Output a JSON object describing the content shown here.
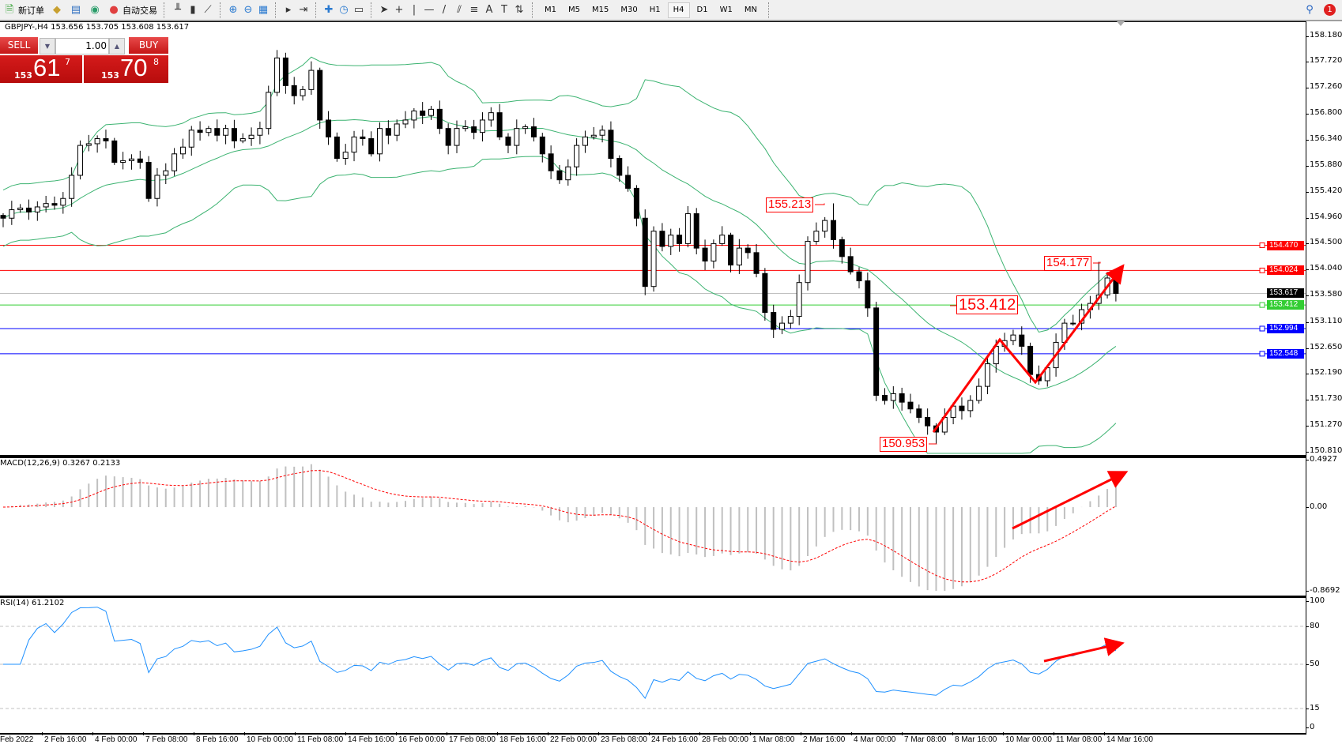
{
  "toolbar": {
    "items": [
      {
        "name": "new-order",
        "label": "新订单",
        "icon": "new-order-icon"
      },
      {
        "name": "market-watch",
        "label": "",
        "icon": "gold-icon"
      },
      {
        "name": "data-window",
        "label": "",
        "icon": "printer-icon"
      },
      {
        "name": "signals",
        "label": "",
        "icon": "signal-icon"
      },
      {
        "name": "auto-trading",
        "label": "自动交易",
        "icon": "auto-trading-icon"
      }
    ],
    "tools": [
      "bar-chart-icon",
      "candlestick-icon",
      "line-chart-icon",
      "zoom-in-icon",
      "zoom-out-icon",
      "tile-windows-icon",
      "autoscroll-icon",
      "chart-shift-icon",
      "indicators-icon",
      "periods-icon",
      "templates-icon",
      "cursor-icon",
      "crosshair-icon",
      "vertical-line-icon",
      "horizontal-line-icon",
      "trendline-icon",
      "equidistant-channel-icon",
      "fibonacci-icon",
      "text-icon",
      "text-label-icon",
      "arrows-icon"
    ],
    "timeframes": [
      "M1",
      "M5",
      "M15",
      "M30",
      "H1",
      "H4",
      "D1",
      "W1",
      "MN"
    ],
    "active_timeframe": "H4",
    "notification_count": "1"
  },
  "chart": {
    "title": "GBPJPY-,H4 153.656 153.705 153.608 153.617",
    "trade_panel": {
      "sell_label": "SELL",
      "buy_label": "BUY",
      "lot": "1.00",
      "sell_price": {
        "prefix": "153",
        "big": "61",
        "sup": "7"
      },
      "buy_price": {
        "prefix": "153",
        "big": "70",
        "sup": "8"
      }
    },
    "price_axis": [
      "158.180",
      "157.720",
      "157.260",
      "156.800",
      "156.340",
      "155.880",
      "155.420",
      "154.960",
      "154.500",
      "154.040",
      "153.580",
      "153.110",
      "152.650",
      "152.190",
      "151.730",
      "151.270",
      "150.810"
    ],
    "hlines": [
      {
        "price": "154.470",
        "color": "#ff0000"
      },
      {
        "price": "154.024",
        "color": "#ff0000"
      },
      {
        "price": "153.617",
        "color": "#000000",
        "line": "#c0c0c0"
      },
      {
        "price": "153.412",
        "color": "#32cd32"
      },
      {
        "price": "152.994",
        "color": "#0000ff"
      },
      {
        "price": "152.548",
        "color": "#0000ff"
      }
    ],
    "annotations": [
      "155.213",
      "154.177",
      "153.412",
      "150.953"
    ],
    "closes": [
      154.95,
      155.1,
      155.13,
      155.06,
      155.15,
      155.21,
      155.18,
      155.3,
      155.71,
      156.24,
      156.27,
      156.36,
      156.32,
      155.94,
      155.97,
      156.0,
      155.94,
      155.3,
      155.71,
      155.79,
      156.09,
      156.21,
      156.51,
      156.47,
      156.54,
      156.42,
      156.54,
      156.32,
      156.36,
      156.42,
      156.54,
      157.18,
      157.79,
      157.3,
      157.12,
      157.23,
      157.57,
      156.69,
      156.39,
      156.01,
      156.12,
      156.39,
      156.36,
      156.09,
      156.54,
      156.42,
      156.62,
      156.69,
      156.85,
      156.77,
      156.88,
      156.54,
      156.24,
      156.54,
      156.57,
      156.47,
      156.69,
      156.82,
      156.39,
      156.24,
      156.54,
      156.57,
      156.39,
      156.09,
      155.79,
      155.63,
      155.86,
      156.24,
      156.39,
      156.42,
      156.51,
      156.01,
      155.71,
      155.48,
      154.95,
      153.74,
      154.72,
      154.45,
      154.65,
      154.5,
      155.03,
      154.42,
      154.19,
      154.5,
      154.65,
      154.12,
      154.42,
      154.34,
      153.97,
      153.28,
      152.98,
      153.09,
      153.21,
      153.81,
      154.54,
      154.72,
      154.91,
      154.57,
      154.27,
      154.0,
      153.84,
      153.36,
      151.81,
      151.72,
      151.84,
      151.69,
      151.57,
      151.42,
      151.27,
      151.16,
      151.42,
      151.62,
      151.54,
      151.72,
      151.97,
      152.37,
      152.68,
      152.78,
      152.88,
      152.68,
      152.18,
      152.07,
      152.3,
      152.75,
      153.09,
      153.09,
      153.33,
      153.44,
      153.59,
      153.89,
      153.617
    ],
    "colors": {
      "bands": "#3cb371",
      "bull": "#ffffff",
      "bear": "#000000",
      "arrows": "#ff0000"
    }
  },
  "macd": {
    "title": "MACD(12,26,9) 0.3267 0.2133",
    "axis": [
      "0.4927",
      "0.00",
      "-0.8692"
    ],
    "range": [
      -0.8692,
      0.4927
    ]
  },
  "rsi": {
    "title": "RSI(14) 61.2102",
    "axis": [
      "100",
      "80",
      "50",
      "15",
      "0"
    ],
    "levels": [
      80,
      50,
      15
    ]
  },
  "time_axis": [
    "Feb 2022",
    "2 Feb 16:00",
    "4 Feb 00:00",
    "7 Feb 08:00",
    "8 Feb 16:00",
    "10 Feb 00:00",
    "11 Feb 08:00",
    "14 Feb 16:00",
    "16 Feb 00:00",
    "17 Feb 08:00",
    "18 Feb 16:00",
    "22 Feb 00:00",
    "23 Feb 08:00",
    "24 Feb 16:00",
    "28 Feb 00:00",
    "1 Mar 08:00",
    "2 Mar 16:00",
    "4 Mar 00:00",
    "7 Mar 08:00",
    "8 Mar 16:00",
    "10 Mar 00:00",
    "11 Mar 08:00",
    "14 Mar 16:00"
  ]
}
